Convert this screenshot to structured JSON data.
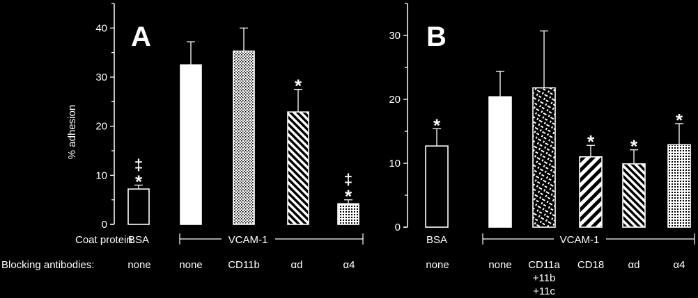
{
  "colors": {
    "background": "#000000",
    "foreground": "#ffffff"
  },
  "chart_data": [
    {
      "type": "bar",
      "panel_label": "A",
      "ylabel": "% adhesion",
      "ylim": [
        0,
        45
      ],
      "yticks": [
        "0",
        "10",
        "20",
        "30",
        "40"
      ],
      "coat_row_label": "Coat protein:",
      "antibody_row_label": "Blocking antibodies:",
      "coat_bsa": "BSA",
      "coat_vcam": "VCAM-1",
      "categories": [
        "none",
        "none",
        "CD11b",
        "αd",
        "α4"
      ],
      "values": [
        7.2,
        32.5,
        35.3,
        22.9,
        4.2
      ],
      "errors": [
        0.8,
        4.7,
        4.7,
        4.6,
        0.8
      ],
      "patterns": [
        "open",
        "solid",
        "dots",
        "diagonal",
        "crosshatch"
      ],
      "significance": [
        "*",
        "",
        "",
        "*",
        "*"
      ],
      "double_dagger": [
        "‡",
        "",
        "",
        "",
        "‡"
      ]
    },
    {
      "type": "bar",
      "panel_label": "B",
      "ylim": [
        0,
        35
      ],
      "yticks": [
        "0",
        "10",
        "20",
        "30"
      ],
      "coat_bsa": "BSA",
      "coat_vcam": "VCAM-1",
      "categories": [
        "none",
        "none",
        "CD11a\n+11b\n+11c",
        "CD18",
        "αd",
        "α4"
      ],
      "values": [
        12.7,
        20.4,
        21.8,
        11.0,
        9.9,
        12.9
      ],
      "errors": [
        2.7,
        4.0,
        8.9,
        1.8,
        2.2,
        3.3
      ],
      "patterns": [
        "open",
        "solid",
        "checker",
        "stripes",
        "diagonal",
        "crosshatch"
      ],
      "significance": [
        "*",
        "",
        "",
        "*",
        "*",
        "*"
      ]
    }
  ]
}
